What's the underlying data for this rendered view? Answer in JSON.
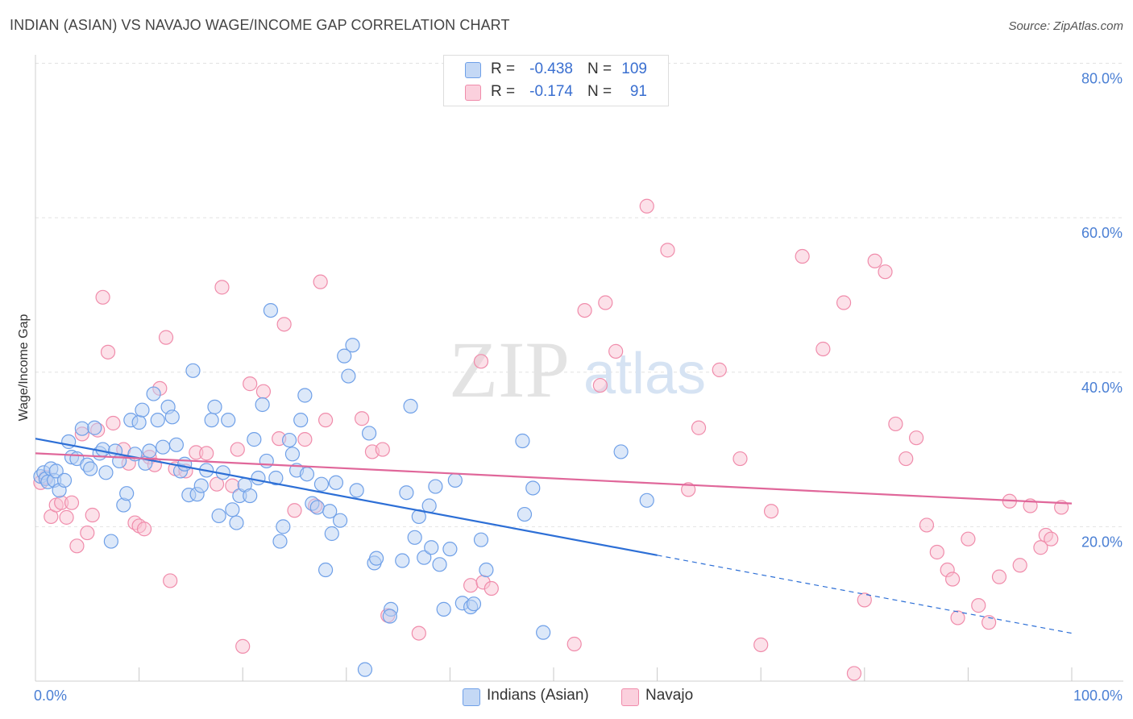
{
  "header": {
    "title": "INDIAN (ASIAN) VS NAVAJO WAGE/INCOME GAP CORRELATION CHART",
    "source": "Source: ZipAtlas.com"
  },
  "watermark": {
    "zip": "ZIP",
    "atlas": "atlas"
  },
  "legend": {
    "rows": [
      {
        "r_label": "R =",
        "r_value": "-0.438",
        "n_label": "N =",
        "n_value": "109",
        "color": "#6fa0e8"
      },
      {
        "r_label": "R =",
        "r_value": "-0.174",
        "n_label": "N =",
        "n_value": "91",
        "color": "#f08cab"
      }
    ]
  },
  "bottom_legend": [
    {
      "label": "Indians (Asian)",
      "color": "#6fa0e8"
    },
    {
      "label": "Navajo",
      "color": "#f08cab"
    }
  ],
  "chart_data": {
    "type": "scatter",
    "ylabel": "Wage/Income Gap",
    "xlabel": "",
    "xlim": [
      0,
      100
    ],
    "ylim": [
      0,
      83
    ],
    "x_tick_labels": {
      "min": "0.0%",
      "max": "100.0%"
    },
    "y_ticks": [
      {
        "value": 20,
        "label": "20.0%"
      },
      {
        "value": 40,
        "label": "40.0%"
      },
      {
        "value": 60,
        "label": "60.0%"
      },
      {
        "value": 80,
        "label": "80.0%"
      }
    ],
    "grid": true,
    "legend_placement": "top-center",
    "series": [
      {
        "name": "Indians (Asian)",
        "color": "#6fa0e8",
        "line_color": "#2d6fd6",
        "trend": {
          "x0": 0,
          "y0": 31.4,
          "x1": 60,
          "y1": 16.3,
          "x_dash_end": 100,
          "y_dash_end": 6.2
        },
        "points": [
          [
            0.5,
            26.5
          ],
          [
            0.8,
            27
          ],
          [
            1,
            26.2
          ],
          [
            1.2,
            25.8
          ],
          [
            1.5,
            27.5
          ],
          [
            1.8,
            26
          ],
          [
            2,
            27.2
          ],
          [
            2.3,
            24.7
          ],
          [
            2.8,
            26
          ],
          [
            3.2,
            31
          ],
          [
            3.5,
            29
          ],
          [
            4,
            28.8
          ],
          [
            4.5,
            32.7
          ],
          [
            5,
            28
          ],
          [
            5.3,
            27.5
          ],
          [
            5.7,
            32.8
          ],
          [
            6.2,
            29.5
          ],
          [
            6.5,
            30
          ],
          [
            6.8,
            27
          ],
          [
            7.3,
            18.1
          ],
          [
            7.7,
            29.8
          ],
          [
            8.1,
            28.5
          ],
          [
            8.5,
            22.8
          ],
          [
            8.8,
            24.3
          ],
          [
            9.2,
            33.8
          ],
          [
            9.6,
            29.4
          ],
          [
            10,
            33.5
          ],
          [
            10.3,
            35.1
          ],
          [
            10.6,
            28.2
          ],
          [
            11,
            29.8
          ],
          [
            11.4,
            37.2
          ],
          [
            11.8,
            33.8
          ],
          [
            12.3,
            30.3
          ],
          [
            12.8,
            35.5
          ],
          [
            13.2,
            34.2
          ],
          [
            13.6,
            30.6
          ],
          [
            14,
            27.2
          ],
          [
            14.4,
            28.1
          ],
          [
            14.8,
            24.1
          ],
          [
            15.2,
            40.2
          ],
          [
            15.6,
            24.2
          ],
          [
            16,
            25.3
          ],
          [
            16.5,
            27.3
          ],
          [
            17,
            33.8
          ],
          [
            17.3,
            35.5
          ],
          [
            17.7,
            21.4
          ],
          [
            18.1,
            27
          ],
          [
            18.6,
            33.8
          ],
          [
            19,
            22.2
          ],
          [
            19.4,
            20.5
          ],
          [
            19.7,
            24
          ],
          [
            20.2,
            25.4
          ],
          [
            20.7,
            24
          ],
          [
            21.1,
            31.3
          ],
          [
            21.5,
            26.3
          ],
          [
            21.9,
            35.8
          ],
          [
            22.3,
            28.5
          ],
          [
            22.7,
            48
          ],
          [
            23.2,
            26.3
          ],
          [
            23.6,
            18.1
          ],
          [
            23.9,
            20
          ],
          [
            24.5,
            31.2
          ],
          [
            24.8,
            29.4
          ],
          [
            25.2,
            27.3
          ],
          [
            25.6,
            33.8
          ],
          [
            26,
            37
          ],
          [
            26.2,
            26.8
          ],
          [
            26.7,
            23
          ],
          [
            27.2,
            22.5
          ],
          [
            27.6,
            25.5
          ],
          [
            28,
            14.4
          ],
          [
            28.4,
            22
          ],
          [
            28.6,
            19.1
          ],
          [
            29,
            25.7
          ],
          [
            29.4,
            20.8
          ],
          [
            29.8,
            42.1
          ],
          [
            30.2,
            39.5
          ],
          [
            30.6,
            43.5
          ],
          [
            31,
            24.7
          ],
          [
            31.8,
            1.5
          ],
          [
            32.2,
            32.1
          ],
          [
            32.7,
            15.3
          ],
          [
            32.9,
            15.9
          ],
          [
            34.3,
            9.3
          ],
          [
            34.2,
            8.4
          ],
          [
            35.4,
            15.6
          ],
          [
            35.8,
            24.4
          ],
          [
            36.2,
            35.6
          ],
          [
            36.6,
            18.6
          ],
          [
            37,
            21.3
          ],
          [
            37.5,
            16
          ],
          [
            38,
            22.7
          ],
          [
            38.2,
            17.3
          ],
          [
            38.6,
            25.2
          ],
          [
            39,
            15.1
          ],
          [
            39.4,
            9.3
          ],
          [
            40,
            17.1
          ],
          [
            40.5,
            26
          ],
          [
            41.2,
            10.1
          ],
          [
            42,
            9.6
          ],
          [
            42.3,
            10
          ],
          [
            43.5,
            14.4
          ],
          [
            43,
            18.3
          ],
          [
            47.2,
            21.6
          ],
          [
            47,
            31.1
          ],
          [
            48,
            25
          ],
          [
            49,
            6.3
          ],
          [
            56.5,
            29.7
          ],
          [
            59,
            23.4
          ]
        ]
      },
      {
        "name": "Navajo",
        "color": "#f08cab",
        "line_color": "#e0679a",
        "trend": {
          "x0": 0,
          "y0": 29.5,
          "x1": 100,
          "y1": 23.0
        },
        "points": [
          [
            0.5,
            25.7
          ],
          [
            1,
            26.4
          ],
          [
            1.5,
            21.3
          ],
          [
            2,
            22.8
          ],
          [
            2.5,
            23.1
          ],
          [
            3,
            21.2
          ],
          [
            3.5,
            23.1
          ],
          [
            4,
            17.5
          ],
          [
            4.5,
            32
          ],
          [
            5,
            19.2
          ],
          [
            5.5,
            21.5
          ],
          [
            6,
            32.5
          ],
          [
            6.5,
            49.7
          ],
          [
            7,
            42.6
          ],
          [
            7.5,
            33.4
          ],
          [
            8.5,
            30
          ],
          [
            9,
            28.2
          ],
          [
            9.6,
            20.5
          ],
          [
            10,
            20.1
          ],
          [
            10.5,
            19.7
          ],
          [
            11,
            29
          ],
          [
            11.5,
            28
          ],
          [
            12,
            37.9
          ],
          [
            12.6,
            44.5
          ],
          [
            13,
            13
          ],
          [
            13.5,
            27.5
          ],
          [
            14.5,
            27.2
          ],
          [
            15.5,
            29.6
          ],
          [
            16.5,
            29.5
          ],
          [
            17.5,
            25.5
          ],
          [
            18,
            51
          ],
          [
            19,
            25.3
          ],
          [
            19.5,
            30
          ],
          [
            20,
            4.5
          ],
          [
            20.7,
            38.5
          ],
          [
            22,
            37.5
          ],
          [
            23.5,
            31.4
          ],
          [
            24,
            46.2
          ],
          [
            25,
            22.1
          ],
          [
            26,
            31.3
          ],
          [
            27,
            22.7
          ],
          [
            27.5,
            51.7
          ],
          [
            28,
            33.8
          ],
          [
            31.5,
            34
          ],
          [
            32.5,
            29.7
          ],
          [
            33.5,
            30
          ],
          [
            34,
            8.5
          ],
          [
            37,
            6.2
          ],
          [
            42,
            12.4
          ],
          [
            43,
            41.4
          ],
          [
            43.2,
            12.8
          ],
          [
            44,
            12
          ],
          [
            52,
            4.8
          ],
          [
            53,
            48
          ],
          [
            54.5,
            38.3
          ],
          [
            55,
            49
          ],
          [
            56,
            42.7
          ],
          [
            59,
            61.5
          ],
          [
            61,
            55.8
          ],
          [
            63,
            24.8
          ],
          [
            64,
            32.8
          ],
          [
            66,
            40.3
          ],
          [
            68,
            28.8
          ],
          [
            70,
            4.7
          ],
          [
            71,
            22
          ],
          [
            74,
            55
          ],
          [
            76,
            43
          ],
          [
            78,
            49
          ],
          [
            79,
            1
          ],
          [
            80,
            10.5
          ],
          [
            81,
            54.4
          ],
          [
            82,
            53
          ],
          [
            83,
            33.3
          ],
          [
            84,
            28.8
          ],
          [
            85,
            31.5
          ],
          [
            86,
            20.2
          ],
          [
            87,
            16.7
          ],
          [
            88,
            14.4
          ],
          [
            88.5,
            13.2
          ],
          [
            89,
            8.2
          ],
          [
            90,
            18.4
          ],
          [
            91,
            9.8
          ],
          [
            92,
            7.6
          ],
          [
            93,
            13.5
          ],
          [
            94,
            23.3
          ],
          [
            95,
            15
          ],
          [
            96,
            22.7
          ],
          [
            97,
            17.3
          ],
          [
            97.5,
            18.9
          ],
          [
            98,
            18.4
          ],
          [
            99,
            22.5
          ]
        ]
      }
    ]
  }
}
